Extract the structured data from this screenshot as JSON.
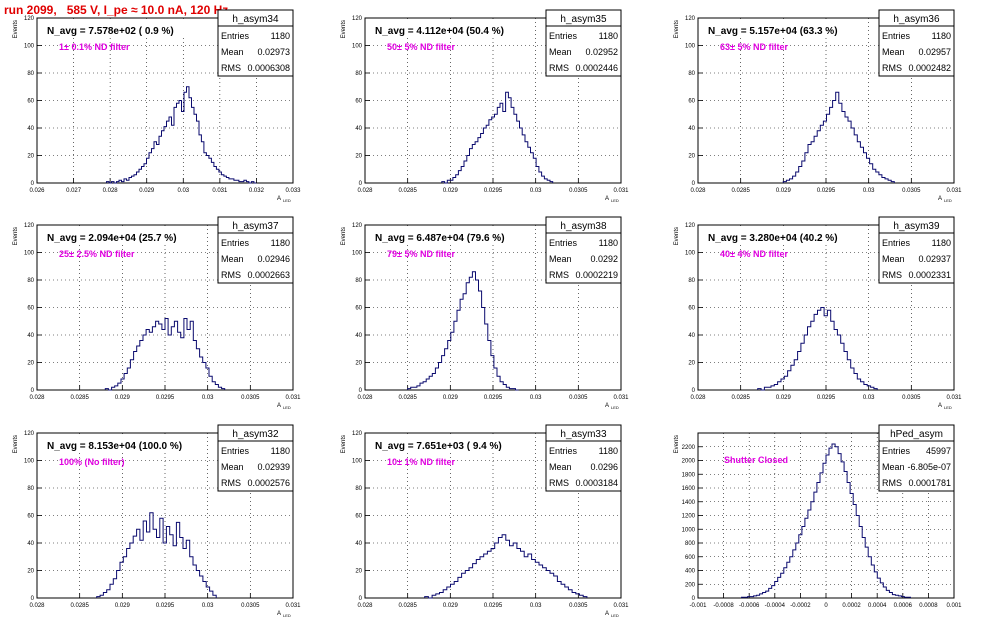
{
  "run_title": "run 2099,   585 V, I_pe ≈ 10.0 nA, 120 Hz",
  "colors": {
    "hist_line": "#0a0a6e",
    "grid": "#000000",
    "title": "#e00000",
    "filter_label": "#e000e0"
  },
  "stats_labels": {
    "entries": "Entries",
    "mean": "Mean",
    "rms": "RMS"
  },
  "chart_data": [
    {
      "type": "bar",
      "name": "h_asym34",
      "title": "N_avg = 7.578e+02 ( 0.9 %)",
      "annotation": "1± 0.1% ND filter",
      "xlabel": "A_LED",
      "ylabel": "Events",
      "xlim": [
        0.026,
        0.033
      ],
      "ylim": [
        0,
        120
      ],
      "xticks": [
        0.026,
        0.027,
        0.028,
        0.029,
        0.03,
        0.031,
        0.032,
        0.033
      ],
      "xtick_labels": [
        "0.026",
        "0.027",
        "0.028",
        "0.029",
        "0.03",
        "0.031",
        "0.032",
        "0.033"
      ],
      "yticks": [
        0,
        20,
        40,
        60,
        80,
        100,
        120
      ],
      "stats": {
        "entries": "1180",
        "mean": "0.02973",
        "rms": "0.0006308"
      },
      "bin_edges": [
        0.0279,
        0.032
      ],
      "values": [
        1,
        0,
        1,
        0,
        1,
        2,
        1,
        3,
        2,
        4,
        5,
        6,
        8,
        10,
        12,
        14,
        18,
        22,
        25,
        30,
        28,
        34,
        38,
        41,
        45,
        48,
        42,
        55,
        58,
        60,
        52,
        66,
        70,
        62,
        55,
        50,
        45,
        35,
        30,
        22,
        20,
        18,
        15,
        12,
        10,
        8,
        6,
        5,
        4,
        3,
        3,
        2,
        2,
        1,
        1,
        2,
        1,
        0,
        1,
        0
      ]
    },
    {
      "type": "bar",
      "name": "h_asym35",
      "title": "N_avg = 4.112e+04 (50.4 %)",
      "annotation": "50± 5% ND filter",
      "xlabel": "A_LED",
      "ylabel": "Events",
      "xlim": [
        0.028,
        0.031
      ],
      "ylim": [
        0,
        120
      ],
      "xticks": [
        0.028,
        0.0285,
        0.029,
        0.0295,
        0.03,
        0.0305,
        0.031
      ],
      "xtick_labels": [
        "0.028",
        "0.0285",
        "0.029",
        "0.0295",
        "0.03",
        "0.0305",
        "0.031"
      ],
      "yticks": [
        0,
        20,
        40,
        60,
        80,
        100,
        120
      ],
      "stats": {
        "entries": "1180",
        "mean": "0.02952",
        "rms": "0.0002446"
      },
      "bin_edges": [
        0.0289,
        0.0302
      ],
      "values": [
        1,
        0,
        2,
        2,
        4,
        6,
        9,
        12,
        16,
        20,
        25,
        28,
        30,
        33,
        36,
        40,
        42,
        46,
        48,
        50,
        55,
        58,
        52,
        66,
        62,
        55,
        50,
        45,
        40,
        35,
        30,
        26,
        22,
        18,
        12,
        8,
        5,
        3,
        2,
        1
      ]
    },
    {
      "type": "bar",
      "name": "h_asym36",
      "title": "N_avg = 5.157e+04 (63.3 %)",
      "annotation": "63± 5% ND filter",
      "xlabel": "A_LED",
      "ylabel": "Events",
      "xlim": [
        0.028,
        0.031
      ],
      "ylim": [
        0,
        120
      ],
      "xticks": [
        0.028,
        0.0285,
        0.029,
        0.0295,
        0.03,
        0.0305,
        0.031
      ],
      "xtick_labels": [
        "0.028",
        "0.0285",
        "0.029",
        "0.0295",
        "0.03",
        "0.0305",
        "0.031"
      ],
      "yticks": [
        0,
        20,
        40,
        60,
        80,
        100,
        120
      ],
      "stats": {
        "entries": "1180",
        "mean": "0.02957",
        "rms": "0.0002482"
      },
      "bin_edges": [
        0.029,
        0.0303
      ],
      "values": [
        1,
        2,
        3,
        5,
        8,
        12,
        16,
        22,
        28,
        30,
        34,
        38,
        42,
        45,
        50,
        55,
        60,
        66,
        58,
        52,
        48,
        45,
        40,
        35,
        30,
        26,
        22,
        18,
        14,
        10,
        8,
        6,
        4,
        3,
        2,
        1
      ]
    },
    {
      "type": "bar",
      "name": "h_asym37",
      "title": "N_avg = 2.094e+04 (25.7 %)",
      "annotation": "25± 2.5% ND filter",
      "xlabel": "A_LED",
      "ylabel": "Events",
      "xlim": [
        0.028,
        0.031
      ],
      "ylim": [
        0,
        120
      ],
      "xticks": [
        0.028,
        0.0285,
        0.029,
        0.0295,
        0.03,
        0.0305,
        0.031
      ],
      "xtick_labels": [
        "0.028",
        "0.0285",
        "0.029",
        "0.0295",
        "0.03",
        "0.0305",
        "0.031"
      ],
      "yticks": [
        0,
        20,
        40,
        60,
        80,
        100,
        120
      ],
      "stats": {
        "entries": "1180",
        "mean": "0.02946",
        "rms": "0.0002663"
      },
      "bin_edges": [
        0.0288,
        0.0302
      ],
      "values": [
        1,
        0,
        2,
        3,
        5,
        8,
        12,
        16,
        22,
        28,
        32,
        36,
        40,
        44,
        42,
        46,
        50,
        48,
        44,
        52,
        40,
        46,
        50,
        42,
        38,
        52,
        44,
        50,
        36,
        30,
        24,
        20,
        16,
        10,
        6,
        4,
        2,
        1
      ]
    },
    {
      "type": "bar",
      "name": "h_asym38",
      "title": "N_avg = 6.487e+04 (79.6 %)",
      "annotation": "79± 5% ND filter",
      "xlabel": "A_LED",
      "ylabel": "Events",
      "xlim": [
        0.028,
        0.031
      ],
      "ylim": [
        0,
        120
      ],
      "xticks": [
        0.028,
        0.0285,
        0.029,
        0.0295,
        0.03,
        0.0305,
        0.031
      ],
      "xtick_labels": [
        "0.028",
        "0.0285",
        "0.029",
        "0.0295",
        "0.03",
        "0.0305",
        "0.031"
      ],
      "yticks": [
        0,
        20,
        40,
        60,
        80,
        100,
        120
      ],
      "stats": {
        "entries": "1180",
        "mean": "0.0292",
        "rms": "0.0002219"
      },
      "bin_edges": [
        0.0285,
        0.0298
      ],
      "values": [
        1,
        2,
        2,
        3,
        5,
        6,
        8,
        10,
        12,
        16,
        20,
        25,
        30,
        36,
        42,
        50,
        58,
        66,
        70,
        78,
        82,
        86,
        80,
        72,
        60,
        48,
        36,
        25,
        16,
        10,
        6,
        4,
        2,
        1,
        1,
        0
      ]
    },
    {
      "type": "bar",
      "name": "h_asym39",
      "title": "N_avg = 3.280e+04 (40.2 %)",
      "annotation": "40± 4% ND filter",
      "xlabel": "A_LED",
      "ylabel": "Events",
      "xlim": [
        0.028,
        0.031
      ],
      "ylim": [
        0,
        120
      ],
      "xticks": [
        0.028,
        0.0285,
        0.029,
        0.0295,
        0.03,
        0.0305,
        0.031
      ],
      "xtick_labels": [
        "0.028",
        "0.0285",
        "0.029",
        "0.0295",
        "0.03",
        "0.0305",
        "0.031"
      ],
      "yticks": [
        0,
        20,
        40,
        60,
        80,
        100,
        120
      ],
      "stats": {
        "entries": "1180",
        "mean": "0.02937",
        "rms": "0.0002331"
      },
      "bin_edges": [
        0.0287,
        0.0301
      ],
      "values": [
        1,
        0,
        2,
        2,
        3,
        4,
        6,
        8,
        10,
        14,
        18,
        22,
        28,
        34,
        40,
        46,
        50,
        55,
        58,
        60,
        54,
        58,
        50,
        44,
        40,
        34,
        28,
        22,
        16,
        12,
        8,
        6,
        4,
        3,
        2,
        1
      ]
    },
    {
      "type": "bar",
      "name": "h_asym32",
      "title": "N_avg = 8.153e+04 (100.0 %)",
      "annotation": "100% (No filter)",
      "xlabel": "A_LED",
      "ylabel": "Events",
      "xlim": [
        0.028,
        0.031
      ],
      "ylim": [
        0,
        120
      ],
      "xticks": [
        0.028,
        0.0285,
        0.029,
        0.0295,
        0.03,
        0.0305,
        0.031
      ],
      "xtick_labels": [
        "0.028",
        "0.0285",
        "0.029",
        "0.0295",
        "0.03",
        "0.0305",
        "0.031"
      ],
      "yticks": [
        0,
        20,
        40,
        60,
        80,
        100,
        120
      ],
      "stats": {
        "entries": "1180",
        "mean": "0.02939",
        "rms": "0.0002576"
      },
      "bin_edges": [
        0.0287,
        0.0301
      ],
      "values": [
        1,
        2,
        4,
        6,
        10,
        14,
        20,
        26,
        30,
        36,
        40,
        45,
        50,
        42,
        56,
        48,
        62,
        50,
        44,
        58,
        40,
        52,
        46,
        38,
        55,
        44,
        36,
        42,
        30,
        24,
        20,
        16,
        12,
        8,
        5,
        2
      ]
    },
    {
      "type": "bar",
      "name": "h_asym33",
      "title": "N_avg = 7.651e+03 ( 9.4 %)",
      "annotation": "10± 1% ND filter",
      "xlabel": "A_LED",
      "ylabel": "Events",
      "xlim": [
        0.028,
        0.031
      ],
      "ylim": [
        0,
        120
      ],
      "xticks": [
        0.028,
        0.0285,
        0.029,
        0.0295,
        0.03,
        0.0305,
        0.031
      ],
      "xtick_labels": [
        "0.028",
        "0.0285",
        "0.029",
        "0.0295",
        "0.03",
        "0.0305",
        "0.031"
      ],
      "yticks": [
        0,
        20,
        40,
        60,
        80,
        100,
        120
      ],
      "stats": {
        "entries": "1180",
        "mean": "0.0296",
        "rms": "0.0003184"
      },
      "bin_edges": [
        0.0287,
        0.0306
      ],
      "values": [
        1,
        0,
        2,
        3,
        4,
        6,
        8,
        10,
        12,
        15,
        18,
        20,
        22,
        25,
        28,
        30,
        32,
        34,
        36,
        40,
        44,
        46,
        42,
        38,
        40,
        36,
        34,
        30,
        32,
        28,
        26,
        24,
        22,
        20,
        18,
        16,
        12,
        10,
        8,
        6,
        4,
        3,
        2,
        1
      ]
    },
    {
      "type": "bar",
      "name": "hPed_asym",
      "title": "",
      "annotation": "Shutter Closed",
      "xlabel": "",
      "ylabel": "Events",
      "xlim": [
        -0.001,
        0.001
      ],
      "ylim": [
        0,
        2400
      ],
      "xticks": [
        -0.001,
        -0.0008,
        -0.0006,
        -0.0004,
        -0.0002,
        0,
        0.0002,
        0.0004,
        0.0006,
        0.0008,
        0.001
      ],
      "xtick_labels": [
        "-0.001",
        "-0.0008",
        "-0.0006",
        "-0.0004",
        "-0.0002",
        "0",
        "0.0002",
        "0.0004",
        "0.0006",
        "0.0008",
        "0.001"
      ],
      "yticks": [
        0,
        200,
        400,
        600,
        800,
        1000,
        1200,
        1400,
        1600,
        1800,
        2000,
        2200
      ],
      "stats": {
        "entries": "45997",
        "mean": "-6.805e-07",
        "rms": "0.0001781"
      },
      "bin_edges": [
        -0.00066,
        0.00066
      ],
      "values": [
        10,
        10,
        20,
        20,
        30,
        40,
        60,
        80,
        100,
        140,
        180,
        240,
        300,
        360,
        440,
        520,
        600,
        700,
        800,
        920,
        1040,
        1160,
        1280,
        1400,
        1540,
        1680,
        1820,
        1960,
        2080,
        2180,
        2240,
        2200,
        2100,
        1980,
        1840,
        1680,
        1520,
        1360,
        1200,
        1040,
        880,
        740,
        600,
        480,
        380,
        290,
        220,
        160,
        110,
        80,
        50,
        40,
        30,
        20,
        10,
        10
      ]
    }
  ]
}
